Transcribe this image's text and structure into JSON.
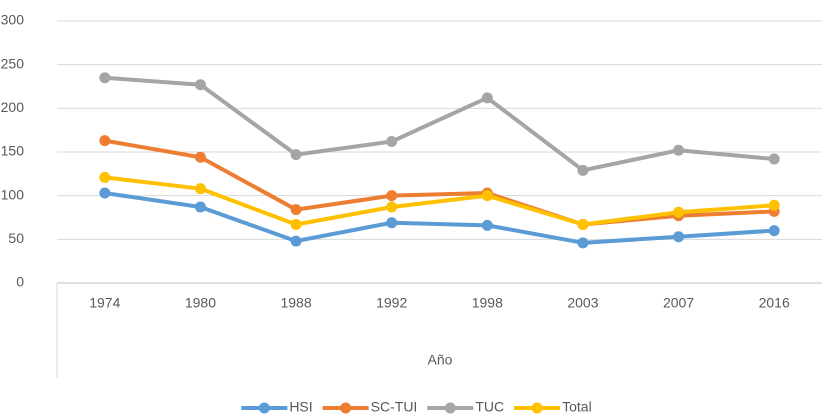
{
  "chart_data": {
    "type": "line",
    "x_label": "Año",
    "categories": [
      "1974",
      "1980",
      "1988",
      "1992",
      "1998",
      "2003",
      "2007",
      "2016"
    ],
    "series": [
      {
        "name": "HSI",
        "color": "#5b9bd5",
        "values": [
          103,
          87,
          48,
          69,
          66,
          46,
          53,
          60
        ]
      },
      {
        "name": "SC-TUI",
        "color": "#ed7d31",
        "values": [
          163,
          144,
          84,
          100,
          103,
          67,
          77,
          82
        ]
      },
      {
        "name": "TUC",
        "color": "#a5a5a5",
        "values": [
          235,
          227,
          147,
          162,
          212,
          129,
          152,
          142
        ]
      },
      {
        "name": "Total",
        "color": "#ffc000",
        "values": [
          121,
          108,
          67,
          87,
          100,
          67,
          81,
          89
        ]
      }
    ],
    "ylim": [
      0,
      300
    ],
    "yticks": [
      0,
      50,
      100,
      150,
      200,
      250,
      300
    ],
    "grid": true,
    "legend": "bottom"
  }
}
